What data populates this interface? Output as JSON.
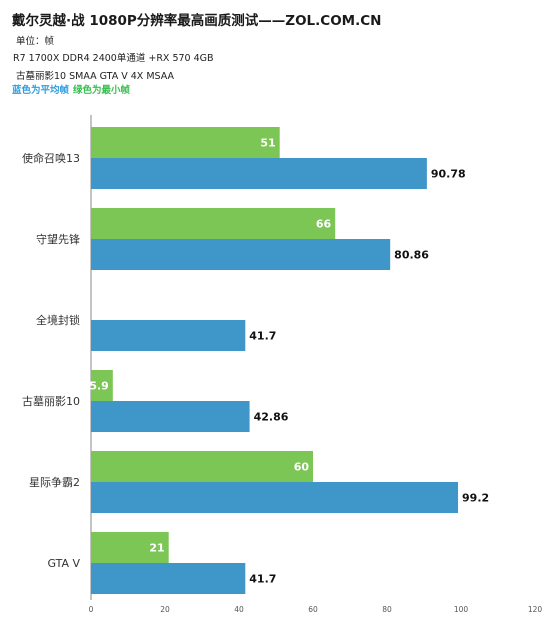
{
  "header": {
    "title": "戴尔灵越·战 1080P分辨率最高画质测试——ZOL.COM.CN",
    "unit": "单位：帧",
    "config": "R7 1700X DDR4 2400单通道 +RX 570 4GB",
    "aa_settings": "古墓丽影10 SMAA GTA V 4X MSAA",
    "legend_avg": "蓝色为平均帧",
    "legend_min": "绿色为最小帧"
  },
  "colors": {
    "min_bar": "#7cc656",
    "avg_bar": "#3f97c9",
    "axis": "#888888",
    "legend_avg": "#2f9ee0",
    "legend_min": "#3bbf52"
  },
  "chart_data": {
    "type": "bar",
    "orientation": "horizontal",
    "categories": [
      "使命召唤13",
      "守望先锋",
      "全境封锁",
      "古墓丽影10",
      "星际争霸2",
      "GTA V"
    ],
    "series": [
      {
        "name": "绿色为最小帧",
        "values": [
          51,
          66,
          null,
          5.9,
          60,
          21
        ]
      },
      {
        "name": "蓝色为平均帧",
        "values": [
          90.78,
          80.86,
          41.7,
          42.86,
          99.2,
          41.7
        ]
      }
    ],
    "data_labels": {
      "min": [
        "51",
        "66",
        "",
        "5.9",
        "60",
        "21"
      ],
      "avg": [
        "90.78",
        "80.86",
        "41.7",
        "42.86",
        "99.2",
        "41.7"
      ]
    },
    "xlim": [
      0,
      120
    ],
    "xticks": [
      "0",
      "20",
      "40",
      "60",
      "80",
      "100",
      "120"
    ]
  }
}
